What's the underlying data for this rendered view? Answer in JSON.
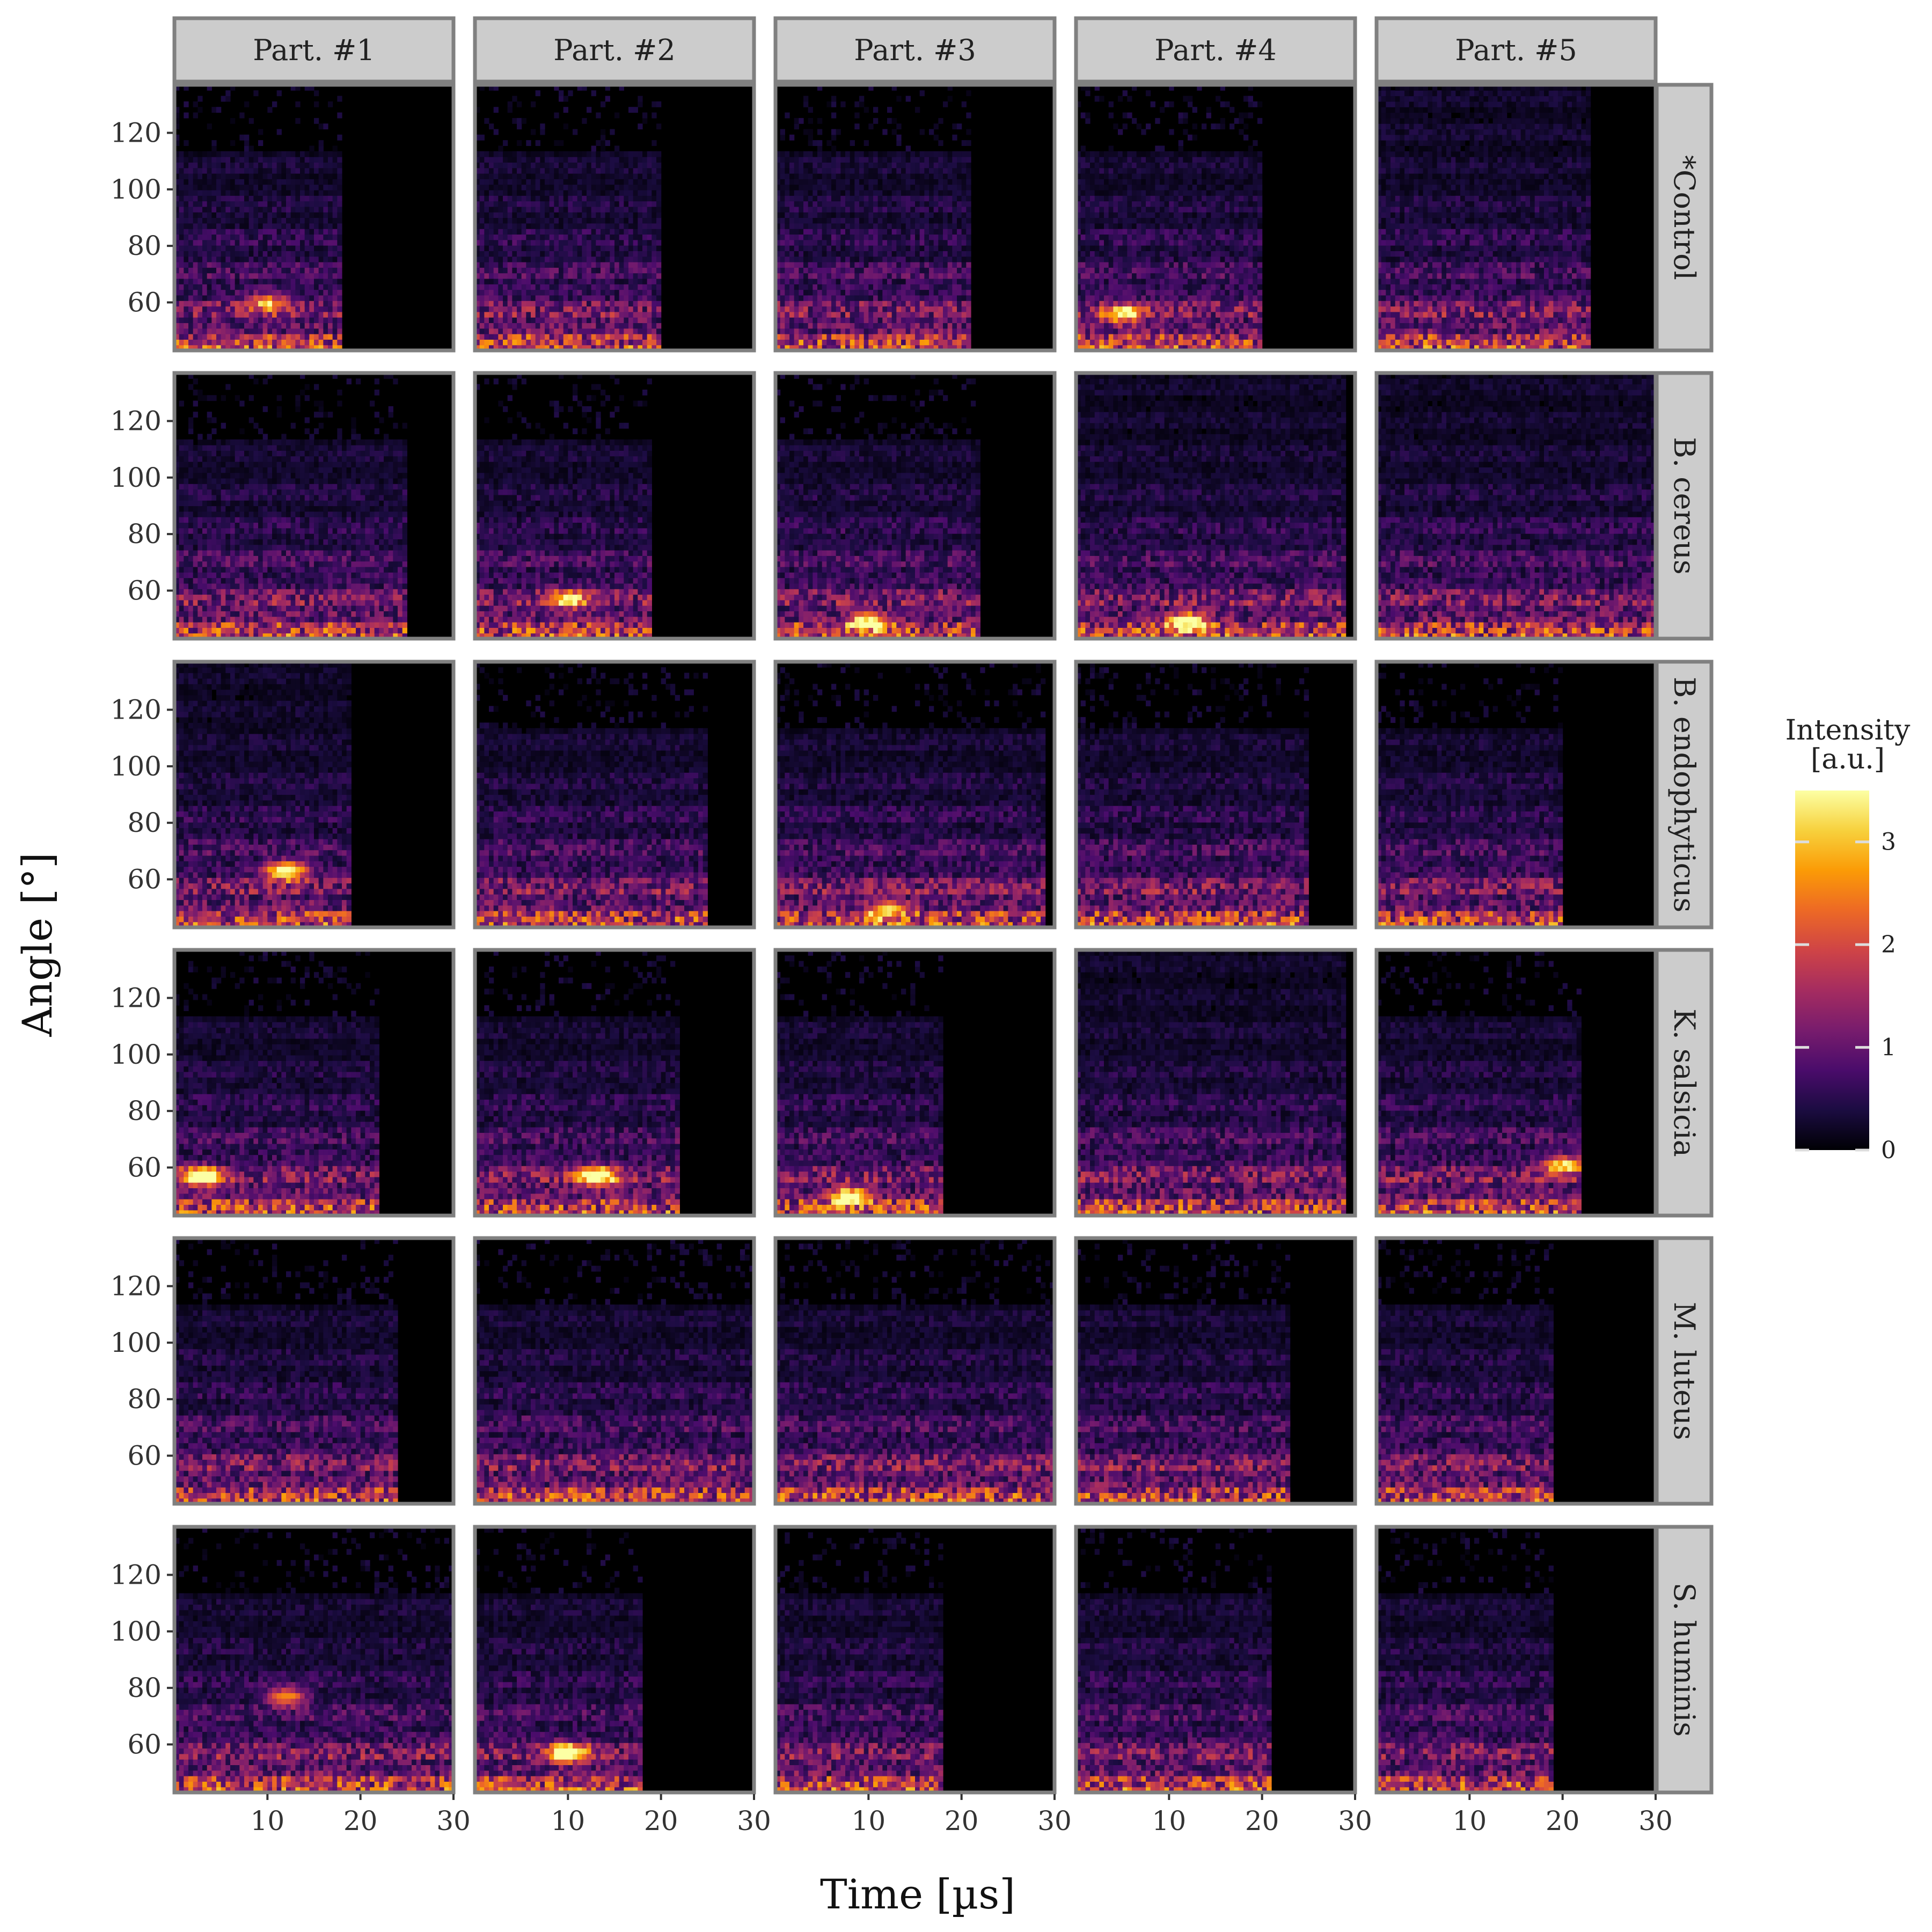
{
  "chart_data": {
    "type": "heatmap",
    "layout": "facet-grid",
    "xlabel": "Time [µs]",
    "ylabel": "Angle [°]",
    "xlim": [
      0,
      30
    ],
    "ylim": [
      43,
      137
    ],
    "x_ticks": [
      10,
      20,
      30
    ],
    "y_ticks": [
      60,
      80,
      100,
      120
    ],
    "column_facets": [
      "Part. #1",
      "Part. #2",
      "Part. #3",
      "Part. #4",
      "Part. #5"
    ],
    "row_facets": [
      "*Control",
      "B. cereus",
      "B. endophyticus",
      "K. salsicia",
      "M. luteus",
      "S. huminis"
    ],
    "colorbar": {
      "title": "Intensity\n[a.u.]",
      "range": [
        0,
        3.5
      ],
      "ticks": [
        0,
        1,
        2,
        3
      ],
      "colormap": "inferno",
      "colors": [
        "#000004",
        "#1b0c41",
        "#4a0c6b",
        "#781c6d",
        "#a52c60",
        "#cf4446",
        "#ed6925",
        "#fb9b06",
        "#f7d13d",
        "#fcffa4"
      ]
    },
    "grid": false,
    "panel_background": "#000000",
    "panel_border": "#808080",
    "strip_fill": "#cccccc",
    "duration_us": [
      [
        18,
        20,
        21,
        20,
        23
      ],
      [
        25,
        19,
        22,
        29,
        30
      ],
      [
        19,
        25,
        29,
        25,
        20
      ],
      [
        22,
        22,
        18,
        29,
        22
      ],
      [
        24,
        30,
        30,
        23,
        19
      ],
      [
        30,
        18,
        18,
        21,
        19
      ]
    ],
    "max_angle_deg": [
      [
        113,
        113,
        113,
        113,
        137
      ],
      [
        113,
        113,
        113,
        137,
        137
      ],
      [
        137,
        113,
        113,
        113,
        113
      ],
      [
        113,
        113,
        113,
        137,
        113
      ],
      [
        113,
        113,
        113,
        113,
        113
      ],
      [
        113,
        113,
        113,
        113,
        113
      ]
    ],
    "hotspots": [
      {
        "row": 0,
        "col": 0,
        "t": 10,
        "angle": 60,
        "intensity": 2.0
      },
      {
        "row": 0,
        "col": 3,
        "t": 5,
        "angle": 56,
        "intensity": 2.6
      },
      {
        "row": 1,
        "col": 1,
        "t": 10,
        "angle": 57,
        "intensity": 2.3
      },
      {
        "row": 1,
        "col": 2,
        "t": 10,
        "angle": 49,
        "intensity": 2.6
      },
      {
        "row": 1,
        "col": 3,
        "t": 12,
        "angle": 49,
        "intensity": 2.9
      },
      {
        "row": 2,
        "col": 0,
        "t": 12,
        "angle": 63,
        "intensity": 3.4
      },
      {
        "row": 2,
        "col": 2,
        "t": 12,
        "angle": 49,
        "intensity": 2.3
      },
      {
        "row": 3,
        "col": 0,
        "t": 3,
        "angle": 57,
        "intensity": 3.1
      },
      {
        "row": 3,
        "col": 1,
        "t": 13,
        "angle": 57,
        "intensity": 3.3
      },
      {
        "row": 3,
        "col": 2,
        "t": 8,
        "angle": 50,
        "intensity": 2.8
      },
      {
        "row": 3,
        "col": 4,
        "t": 20,
        "angle": 61,
        "intensity": 2.6
      },
      {
        "row": 5,
        "col": 0,
        "t": 12,
        "angle": 77,
        "intensity": 2.2
      },
      {
        "row": 5,
        "col": 1,
        "t": 10,
        "angle": 57,
        "intensity": 3.4
      }
    ]
  }
}
